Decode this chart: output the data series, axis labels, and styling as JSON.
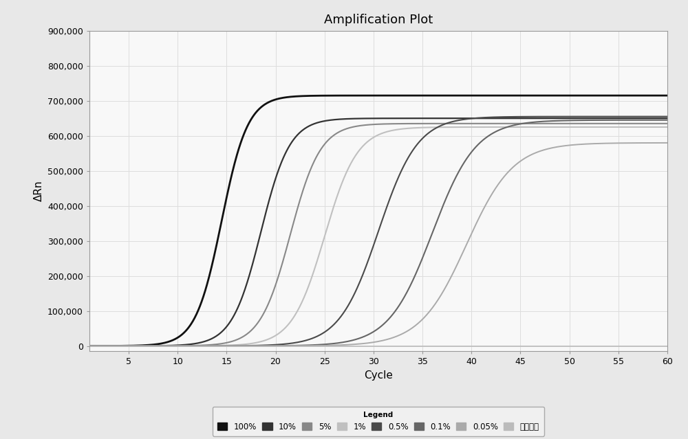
{
  "title": "Amplification Plot",
  "xlabel": "Cycle",
  "ylabel": "ΔRn",
  "xlim": [
    1,
    60
  ],
  "ylim": [
    -15000,
    900000
  ],
  "yticks": [
    0,
    100000,
    200000,
    300000,
    400000,
    500000,
    600000,
    700000,
    800000,
    900000
  ],
  "ytick_labels": [
    "0",
    "100,000",
    "200,000",
    "300,000",
    "400,000",
    "500,000",
    "600,000",
    "700,000",
    "800,000",
    "900,000"
  ],
  "xticks": [
    5,
    10,
    15,
    20,
    25,
    30,
    35,
    40,
    45,
    50,
    55,
    60
  ],
  "series": [
    {
      "label": "100%",
      "color": "#111111",
      "linewidth": 2.0,
      "midpoint": 14.5,
      "steepness": 0.75,
      "plateau": 715000
    },
    {
      "label": "10%",
      "color": "#333333",
      "linewidth": 1.6,
      "midpoint": 18.5,
      "steepness": 0.68,
      "plateau": 650000
    },
    {
      "label": "5%",
      "color": "#888888",
      "linewidth": 1.5,
      "midpoint": 21.5,
      "steepness": 0.65,
      "plateau": 635000
    },
    {
      "label": "1%",
      "color": "#c0c0c0",
      "linewidth": 1.5,
      "midpoint": 25.0,
      "steepness": 0.6,
      "plateau": 625000
    },
    {
      "label": "0.5%",
      "color": "#4a4a4a",
      "linewidth": 1.5,
      "midpoint": 30.5,
      "steepness": 0.5,
      "plateau": 655000
    },
    {
      "label": "0.1%",
      "color": "#666666",
      "linewidth": 1.5,
      "midpoint": 36.0,
      "steepness": 0.45,
      "plateau": 645000
    },
    {
      "label": "0.05%",
      "color": "#aaaaaa",
      "linewidth": 1.4,
      "midpoint": 39.5,
      "steepness": 0.42,
      "plateau": 580000
    },
    {
      "label": "阴性对照",
      "color": "#bbbbbb",
      "linewidth": 1.2,
      "midpoint": 999,
      "steepness": 0.3,
      "plateau": 3000
    }
  ],
  "bg_color": "#e8e8e8",
  "plot_bg_color": "#f8f8f8",
  "grid_color": "#dddddd",
  "legend_title": "Legend",
  "title_fontsize": 13,
  "axis_label_fontsize": 11,
  "tick_fontsize": 9
}
